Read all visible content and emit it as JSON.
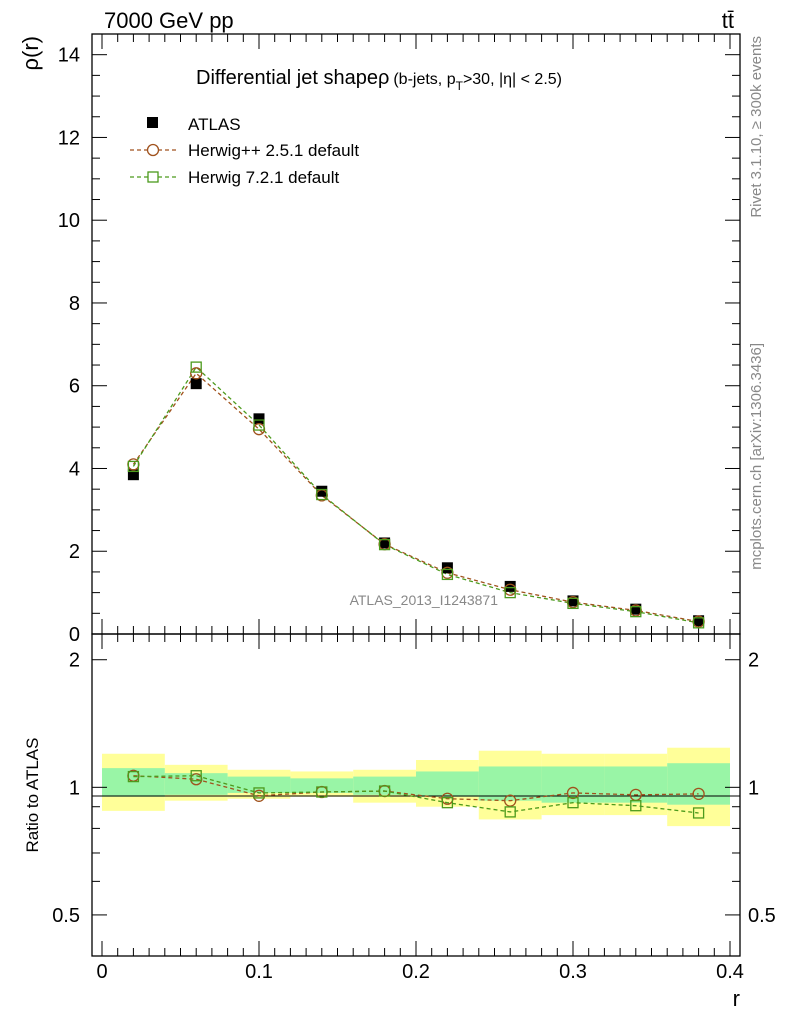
{
  "header": {
    "energy_label": "7000 GeV pp",
    "process_label": "tt̄"
  },
  "side_labels": {
    "rivet": "Rivet 3.1.10, ≥ 300k events",
    "mcplots": "mcplots.cern.ch [arXiv:1306.3436]"
  },
  "watermark": "ATLAS_2013_I1243871",
  "legend": {
    "atlas": "ATLAS",
    "herwigpp": "Herwig++ 2.5.1 default",
    "herwig7": "Herwig 7.2.1 default"
  },
  "colors": {
    "atlas": "#000000",
    "herwigpp": "#a0521d",
    "herwig7": "#4c9a1c",
    "band_inner": "#99f5a6",
    "band_outer": "#ffff99"
  },
  "chart_data": [
    {
      "type": "line",
      "title": "Differential jet shape ρ",
      "title_main": "Differential jet shapeρ",
      "title_sub_a": "(b-jets, p",
      "title_sub_T": "T",
      "title_sub_b": ">30, |η| < 2.5)",
      "xlabel": "",
      "ylabel": "ρ(r)",
      "xlim": [
        0,
        0.4
      ],
      "ylim": [
        0,
        14.5
      ],
      "yticks": [
        0,
        2,
        4,
        6,
        8,
        10,
        12,
        14
      ],
      "ytick_labels": [
        "0",
        "2",
        "4",
        "6",
        "8",
        "10",
        "12",
        "14"
      ],
      "x": [
        0.02,
        0.06,
        0.1,
        0.14,
        0.18,
        0.22,
        0.26,
        0.3,
        0.34,
        0.38
      ],
      "series": [
        {
          "name": "ATLAS",
          "marker": "filled-square",
          "values": [
            3.85,
            6.05,
            5.2,
            3.45,
            2.2,
            1.6,
            1.15,
            0.8,
            0.6,
            0.32
          ]
        },
        {
          "name": "Herwig++ 2.5.1 default",
          "marker": "open-circle",
          "values": [
            4.1,
            6.3,
            4.95,
            3.35,
            2.17,
            1.48,
            1.07,
            0.77,
            0.57,
            0.3
          ]
        },
        {
          "name": "Herwig 7.2.1 default",
          "marker": "open-square",
          "values": [
            4.05,
            6.45,
            5.05,
            3.37,
            2.16,
            1.44,
            1.0,
            0.74,
            0.54,
            0.27
          ]
        }
      ]
    },
    {
      "type": "line",
      "title": "",
      "xlabel": "r",
      "ylabel": "Ratio to ATLAS",
      "xlim": [
        0,
        0.4
      ],
      "ylim": [
        0.4,
        2.3
      ],
      "yticks": [
        0.5,
        1,
        2
      ],
      "ytick_labels": [
        "0.5",
        "1",
        "2"
      ],
      "xticks": [
        0,
        0.1,
        0.2,
        0.3,
        0.4
      ],
      "xtick_labels": [
        "0",
        "0.1",
        "0.2",
        "0.3",
        "0.4"
      ],
      "bins": [
        [
          0,
          0.04
        ],
        [
          0.04,
          0.08
        ],
        [
          0.08,
          0.12
        ],
        [
          0.12,
          0.16
        ],
        [
          0.16,
          0.2
        ],
        [
          0.2,
          0.24
        ],
        [
          0.24,
          0.28
        ],
        [
          0.28,
          0.32
        ],
        [
          0.32,
          0.36
        ],
        [
          0.36,
          0.4
        ]
      ],
      "band_inner": [
        [
          0.95,
          1.11
        ],
        [
          0.96,
          1.08
        ],
        [
          0.97,
          1.06
        ],
        [
          0.97,
          1.05
        ],
        [
          0.96,
          1.06
        ],
        [
          0.95,
          1.09
        ],
        [
          0.93,
          1.12
        ],
        [
          0.92,
          1.12
        ],
        [
          0.92,
          1.12
        ],
        [
          0.91,
          1.14
        ]
      ],
      "band_outer": [
        [
          0.88,
          1.2
        ],
        [
          0.93,
          1.13
        ],
        [
          0.94,
          1.1
        ],
        [
          0.95,
          1.09
        ],
        [
          0.92,
          1.1
        ],
        [
          0.9,
          1.16
        ],
        [
          0.84,
          1.22
        ],
        [
          0.86,
          1.2
        ],
        [
          0.86,
          1.2
        ],
        [
          0.81,
          1.24
        ]
      ],
      "x": [
        0.02,
        0.06,
        0.1,
        0.14,
        0.18,
        0.22,
        0.26,
        0.3,
        0.34,
        0.38
      ],
      "series": [
        {
          "name": "Herwig++ 2.5.1 default",
          "marker": "open-circle",
          "values": [
            1.065,
            1.045,
            0.955,
            0.975,
            0.98,
            0.94,
            0.93,
            0.97,
            0.96,
            0.965
          ]
        },
        {
          "name": "Herwig 7.2.1 default",
          "marker": "open-square",
          "values": [
            1.06,
            1.065,
            0.97,
            0.975,
            0.98,
            0.92,
            0.875,
            0.92,
            0.905,
            0.87
          ]
        }
      ]
    }
  ]
}
